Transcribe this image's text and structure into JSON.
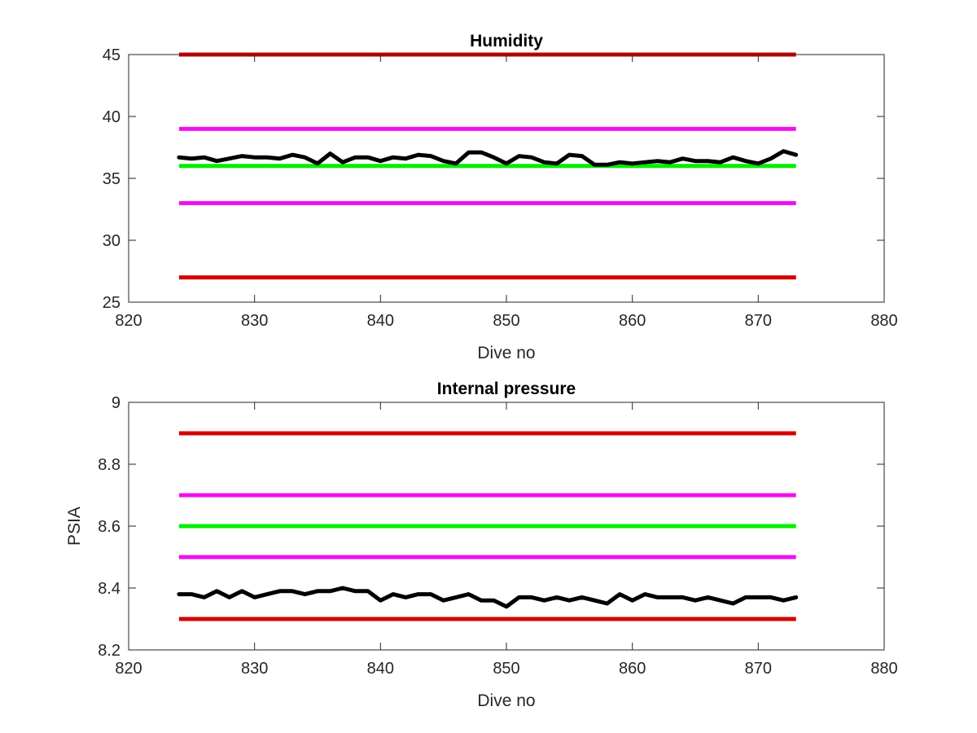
{
  "chart_data": [
    {
      "type": "line",
      "title": "Humidity",
      "xlabel": "Dive no",
      "ylabel": "",
      "xlim": [
        820,
        880
      ],
      "ylim": [
        25,
        45
      ],
      "xticks": [
        820,
        830,
        840,
        850,
        860,
        870,
        880
      ],
      "yticks": [
        25,
        30,
        35,
        40,
        45
      ],
      "grid": false,
      "reference_lines": [
        {
          "y": 45,
          "x": [
            824,
            873
          ],
          "color": "#d40000"
        },
        {
          "y": 39,
          "x": [
            824,
            873
          ],
          "color": "#ee10ee"
        },
        {
          "y": 36,
          "x": [
            824,
            873
          ],
          "color": "#00ee00"
        },
        {
          "y": 33,
          "x": [
            824,
            873
          ],
          "color": "#ee10ee"
        },
        {
          "y": 27,
          "x": [
            824,
            873
          ],
          "color": "#d40000"
        }
      ],
      "series": [
        {
          "color": "#000000",
          "x": [
            824,
            825,
            826,
            827,
            828,
            829,
            830,
            831,
            832,
            833,
            834,
            835,
            836,
            837,
            838,
            839,
            840,
            841,
            842,
            843,
            844,
            845,
            846,
            847,
            848,
            849,
            850,
            851,
            852,
            853,
            854,
            855,
            856,
            857,
            858,
            859,
            860,
            861,
            862,
            863,
            864,
            865,
            866,
            867,
            868,
            869,
            870,
            871,
            872,
            873
          ],
          "values": [
            36.7,
            36.6,
            36.7,
            36.4,
            36.6,
            36.8,
            36.7,
            36.7,
            36.6,
            36.9,
            36.7,
            36.2,
            37.0,
            36.3,
            36.7,
            36.7,
            36.4,
            36.7,
            36.6,
            36.9,
            36.8,
            36.4,
            36.2,
            37.1,
            37.1,
            36.7,
            36.2,
            36.8,
            36.7,
            36.3,
            36.2,
            36.9,
            36.8,
            36.1,
            36.1,
            36.3,
            36.2,
            36.3,
            36.4,
            36.3,
            36.6,
            36.4,
            36.4,
            36.3,
            36.7,
            36.4,
            36.2,
            36.6,
            37.2,
            36.9
          ]
        }
      ]
    },
    {
      "type": "line",
      "title": "Internal pressure",
      "xlabel": "Dive no",
      "ylabel": "PSIA",
      "xlim": [
        820,
        880
      ],
      "ylim": [
        8.2,
        9
      ],
      "xticks": [
        820,
        830,
        840,
        850,
        860,
        870,
        880
      ],
      "yticks": [
        8.2,
        8.4,
        8.6,
        8.8,
        9
      ],
      "ytick_labels": [
        "8.2",
        "8.4",
        "8.6",
        "8.8",
        "9"
      ],
      "grid": false,
      "reference_lines": [
        {
          "y": 8.9,
          "x": [
            824,
            873
          ],
          "color": "#d40000"
        },
        {
          "y": 8.7,
          "x": [
            824,
            873
          ],
          "color": "#ee10ee"
        },
        {
          "y": 8.6,
          "x": [
            824,
            873
          ],
          "color": "#00ee00"
        },
        {
          "y": 8.5,
          "x": [
            824,
            873
          ],
          "color": "#ee10ee"
        },
        {
          "y": 8.3,
          "x": [
            824,
            873
          ],
          "color": "#d40000"
        }
      ],
      "series": [
        {
          "color": "#000000",
          "x": [
            824,
            825,
            826,
            827,
            828,
            829,
            830,
            831,
            832,
            833,
            834,
            835,
            836,
            837,
            838,
            839,
            840,
            841,
            842,
            843,
            844,
            845,
            846,
            847,
            848,
            849,
            850,
            851,
            852,
            853,
            854,
            855,
            856,
            857,
            858,
            859,
            860,
            861,
            862,
            863,
            864,
            865,
            866,
            867,
            868,
            869,
            870,
            871,
            872,
            873
          ],
          "values": [
            8.38,
            8.38,
            8.37,
            8.39,
            8.37,
            8.39,
            8.37,
            8.38,
            8.39,
            8.39,
            8.38,
            8.39,
            8.39,
            8.4,
            8.39,
            8.39,
            8.36,
            8.38,
            8.37,
            8.38,
            8.38,
            8.36,
            8.37,
            8.38,
            8.36,
            8.36,
            8.34,
            8.37,
            8.37,
            8.36,
            8.37,
            8.36,
            8.37,
            8.36,
            8.35,
            8.38,
            8.36,
            8.38,
            8.37,
            8.37,
            8.37,
            8.36,
            8.37,
            8.36,
            8.35,
            8.37,
            8.37,
            8.37,
            8.36,
            8.37
          ]
        }
      ]
    }
  ]
}
